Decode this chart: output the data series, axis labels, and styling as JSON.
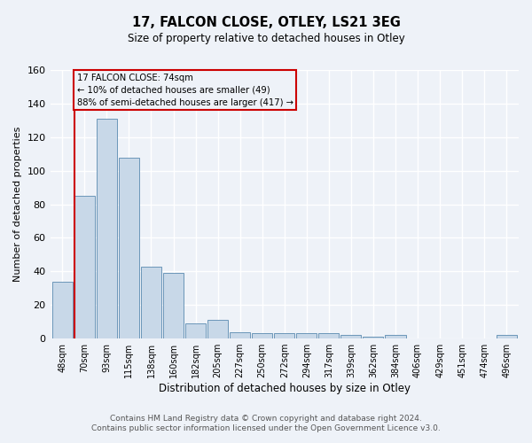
{
  "title": "17, FALCON CLOSE, OTLEY, LS21 3EG",
  "subtitle": "Size of property relative to detached houses in Otley",
  "xlabel": "Distribution of detached houses by size in Otley",
  "ylabel": "Number of detached properties",
  "categories": [
    "48sqm",
    "70sqm",
    "93sqm",
    "115sqm",
    "138sqm",
    "160sqm",
    "182sqm",
    "205sqm",
    "227sqm",
    "250sqm",
    "272sqm",
    "294sqm",
    "317sqm",
    "339sqm",
    "362sqm",
    "384sqm",
    "406sqm",
    "429sqm",
    "451sqm",
    "474sqm",
    "496sqm"
  ],
  "values": [
    34,
    85,
    131,
    108,
    43,
    39,
    9,
    11,
    4,
    3,
    3,
    3,
    3,
    2,
    1,
    2,
    0,
    0,
    0,
    0,
    2
  ],
  "bar_color": "#c8d8e8",
  "bar_edge_color": "#5a8ab0",
  "ylim": [
    0,
    160
  ],
  "yticks": [
    0,
    20,
    40,
    60,
    80,
    100,
    120,
    140,
    160
  ],
  "vline_color": "#cc0000",
  "annotation_box_text": [
    "17 FALCON CLOSE: 74sqm",
    "← 10% of detached houses are smaller (49)",
    "88% of semi-detached houses are larger (417) →"
  ],
  "annotation_box_color": "#cc0000",
  "footer_line1": "Contains HM Land Registry data © Crown copyright and database right 2024.",
  "footer_line2": "Contains public sector information licensed under the Open Government Licence v3.0.",
  "background_color": "#eef2f8",
  "grid_color": "#ffffff"
}
